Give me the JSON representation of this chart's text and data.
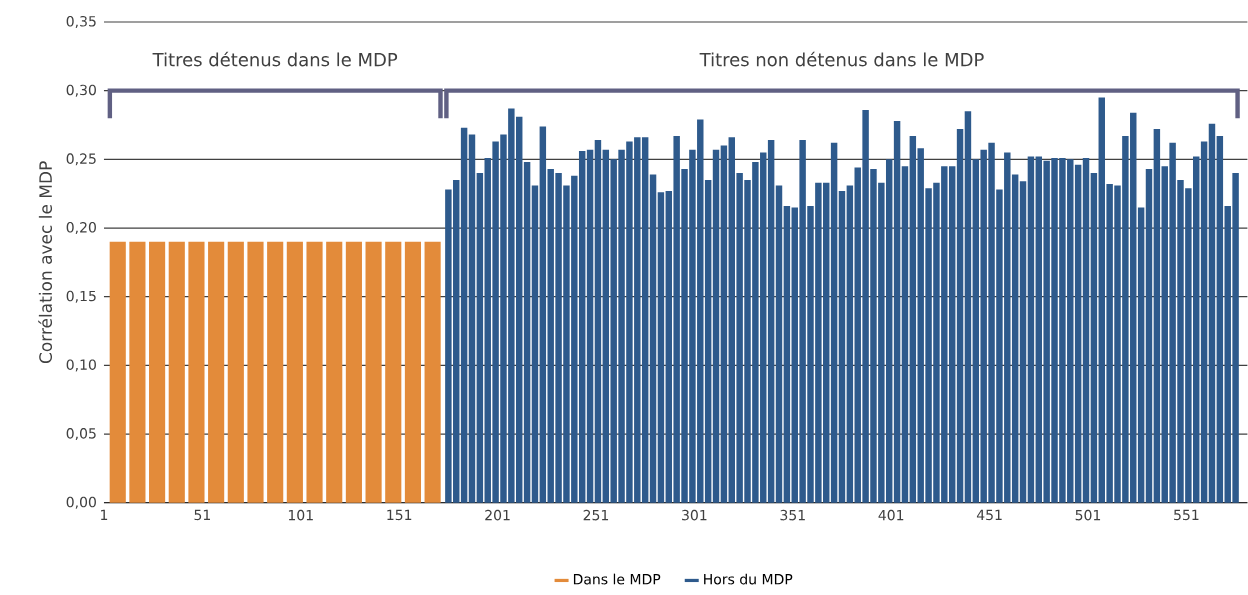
{
  "chart_data": {
    "type": "bar",
    "ylabel": "Corrélation avec le MDP",
    "annotations": [
      "Titres détenus dans le MDP",
      "Titres non détenus dans le MDP"
    ],
    "xlim": [
      1,
      582
    ],
    "xticks": [
      1,
      51,
      101,
      151,
      201,
      251,
      301,
      351,
      401,
      451,
      501,
      551
    ],
    "ylim": [
      0,
      0.35
    ],
    "yticks": [
      {
        "value": 0,
        "label": "0,00"
      },
      {
        "value": 0.05,
        "label": "0,05"
      },
      {
        "value": 0.1,
        "label": "0,10"
      },
      {
        "value": 0.15,
        "label": "0,15"
      },
      {
        "value": 0.2,
        "label": "0,20"
      },
      {
        "value": 0.25,
        "label": "0,25"
      },
      {
        "value": 0.3,
        "label": "0,30"
      },
      {
        "value": 0.35,
        "label": "0,35"
      }
    ],
    "grid": "y",
    "legend": "bottom",
    "series": [
      {
        "name": "Dans le MDP",
        "color": "#e38b3a",
        "x": [
          8,
          18,
          28,
          38,
          48,
          58,
          68,
          78,
          88,
          98,
          108,
          118,
          128,
          138,
          148,
          158,
          168
        ],
        "values": [
          0.19,
          0.19,
          0.19,
          0.19,
          0.19,
          0.19,
          0.19,
          0.19,
          0.19,
          0.19,
          0.19,
          0.19,
          0.19,
          0.19,
          0.19,
          0.19,
          0.19
        ]
      },
      {
        "name": "Hors du MDP",
        "color": "#2e5a8c",
        "x": [
          176,
          180,
          184,
          188,
          192,
          196,
          200,
          204,
          208,
          212,
          216,
          220,
          224,
          228,
          232,
          236,
          240,
          244,
          248,
          252,
          256,
          260,
          264,
          268,
          272,
          276,
          280,
          284,
          288,
          292,
          296,
          300,
          304,
          308,
          312,
          316,
          320,
          324,
          328,
          332,
          336,
          340,
          344,
          348,
          352,
          356,
          360,
          364,
          368,
          372,
          376,
          380,
          384,
          388,
          392,
          396,
          400,
          404,
          408,
          412,
          416,
          420,
          424,
          428,
          432,
          436,
          440,
          444,
          448,
          452,
          456,
          460,
          464,
          468,
          472,
          476,
          480,
          484,
          488,
          492,
          496,
          500,
          504,
          508,
          512,
          516,
          520,
          524,
          528,
          532,
          536,
          540,
          544,
          548,
          552,
          556,
          560,
          564,
          568,
          572,
          576
        ],
        "values": [
          0.228,
          0.235,
          0.273,
          0.268,
          0.24,
          0.251,
          0.263,
          0.268,
          0.287,
          0.281,
          0.248,
          0.231,
          0.274,
          0.243,
          0.24,
          0.231,
          0.238,
          0.256,
          0.257,
          0.264,
          0.257,
          0.25,
          0.257,
          0.263,
          0.266,
          0.266,
          0.239,
          0.226,
          0.227,
          0.267,
          0.243,
          0.257,
          0.279,
          0.235,
          0.257,
          0.26,
          0.266,
          0.24,
          0.235,
          0.248,
          0.255,
          0.264,
          0.231,
          0.216,
          0.215,
          0.264,
          0.216,
          0.233,
          0.233,
          0.262,
          0.227,
          0.231,
          0.244,
          0.286,
          0.243,
          0.233,
          0.25,
          0.278,
          0.245,
          0.267,
          0.258,
          0.229,
          0.233,
          0.245,
          0.245,
          0.272,
          0.285,
          0.25,
          0.257,
          0.262,
          0.228,
          0.255,
          0.239,
          0.234,
          0.252,
          0.252,
          0.249,
          0.251,
          0.251,
          0.25,
          0.246,
          0.251,
          0.24,
          0.295,
          0.232,
          0.231,
          0.267,
          0.284,
          0.215,
          0.243,
          0.272,
          0.245,
          0.262,
          0.235,
          0.229,
          0.252,
          0.263,
          0.276,
          0.267,
          0.216,
          0.24
        ]
      }
    ]
  }
}
